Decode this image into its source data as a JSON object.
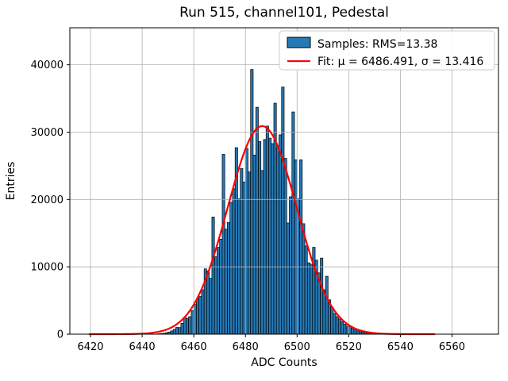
{
  "chart_data": {
    "type": "bar",
    "subtype": "histogram-with-gaussian-fit",
    "title": "Run 515, channel101, Pedestal",
    "xlabel": "ADC Counts",
    "ylabel": "Entries",
    "xlim": [
      6412,
      6578
    ],
    "ylim": [
      0,
      45500
    ],
    "x_ticks": [
      6420,
      6440,
      6460,
      6480,
      6500,
      6520,
      6540,
      6560
    ],
    "y_ticks": [
      0,
      10000,
      20000,
      30000,
      40000
    ],
    "grid": true,
    "grid_color": "#b0b0b0",
    "histogram": {
      "bin_width": 1,
      "first_bin": 6446,
      "counts": [
        60,
        90,
        140,
        210,
        320,
        480,
        700,
        1000,
        980,
        1600,
        2500,
        2350,
        2600,
        3500,
        4400,
        5300,
        5600,
        6600,
        9700,
        9400,
        8300,
        17400,
        11500,
        12900,
        14100,
        26700,
        15600,
        16600,
        19600,
        21600,
        27700,
        20100,
        24600,
        22600,
        27600,
        24100,
        39300,
        26600,
        33700,
        28600,
        24300,
        28900,
        30900,
        29100,
        28300,
        34300,
        27700,
        29600,
        36700,
        26100,
        16500,
        20400,
        33000,
        25900,
        20100,
        25900,
        16400,
        13100,
        10600,
        10400,
        12900,
        11000,
        9100,
        11300,
        6600,
        8600,
        5100,
        4000,
        3100,
        2600,
        2250,
        1850,
        1500,
        1200,
        1100,
        850,
        640,
        480,
        360,
        280,
        215,
        165,
        125,
        95,
        70
      ],
      "fill_color": "#2579b5",
      "edge_color": "#000000",
      "rms": 13.38
    },
    "fit": {
      "type": "gaussian",
      "mu": 6486.491,
      "sigma": 13.416,
      "amplitude": 30900,
      "x_start": 6419.4,
      "x_end": 6553.6,
      "color": "#ff0000"
    },
    "legend": {
      "position": "upper right",
      "entries": [
        {
          "label": "Samples: RMS=13.38",
          "marker": "patch"
        },
        {
          "label": "Fit: μ = 6486.491, σ = 13.416",
          "marker": "line"
        }
      ]
    }
  }
}
